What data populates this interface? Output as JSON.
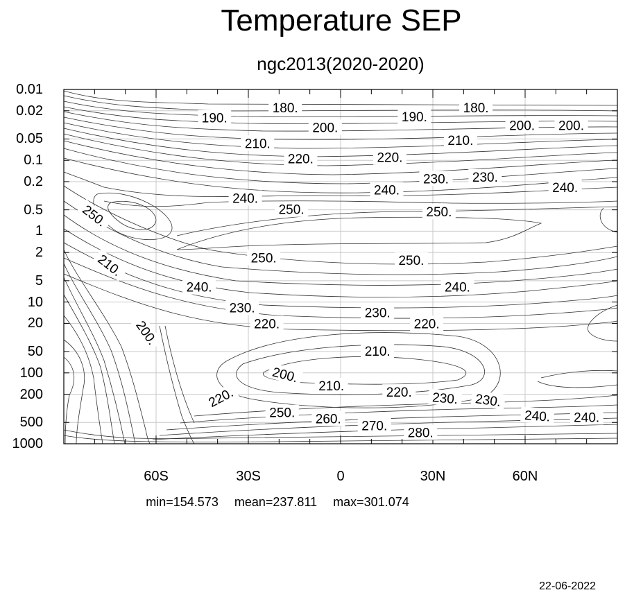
{
  "chart_data": {
    "type": "contour",
    "title": "Temperature SEP",
    "subtitle": "ngc2013(2020-2020)",
    "x_ticks": [
      {
        "value": -60,
        "label": "60S"
      },
      {
        "value": -30,
        "label": "30S"
      },
      {
        "value": 0,
        "label": "0"
      },
      {
        "value": 30,
        "label": "30N"
      },
      {
        "value": 60,
        "label": "60N"
      }
    ],
    "xlim": [
      -90,
      90
    ],
    "y_scale": "log",
    "y_reversed": true,
    "ylim": [
      0.01,
      1000
    ],
    "y_ticks": [
      {
        "value": 0.01,
        "label": "0.01"
      },
      {
        "value": 0.02,
        "label": "0.02"
      },
      {
        "value": 0.05,
        "label": "0.05"
      },
      {
        "value": 0.1,
        "label": "0.1"
      },
      {
        "value": 0.2,
        "label": "0.2"
      },
      {
        "value": 0.5,
        "label": "0.5"
      },
      {
        "value": 1,
        "label": "1"
      },
      {
        "value": 2,
        "label": "2"
      },
      {
        "value": 5,
        "label": "5"
      },
      {
        "value": 10,
        "label": "10"
      },
      {
        "value": 20,
        "label": "20"
      },
      {
        "value": 50,
        "label": "50"
      },
      {
        "value": 100,
        "label": "100"
      },
      {
        "value": 200,
        "label": "200"
      },
      {
        "value": 500,
        "label": "500"
      },
      {
        "value": 1000,
        "label": "1000"
      }
    ],
    "grid": true,
    "contour_labels": [
      {
        "text": "180.",
        "x": -18,
        "p": 0.018
      },
      {
        "text": "180.",
        "x": 44,
        "p": 0.018
      },
      {
        "text": "190.",
        "x": -41,
        "p": 0.025
      },
      {
        "text": "190.",
        "x": 24,
        "p": 0.024
      },
      {
        "text": "200.",
        "x": -5,
        "p": 0.034
      },
      {
        "text": "200.",
        "x": 59,
        "p": 0.032
      },
      {
        "text": "200.",
        "x": 75,
        "p": 0.032
      },
      {
        "text": "210.",
        "x": -27,
        "p": 0.057
      },
      {
        "text": "210.",
        "x": 39,
        "p": 0.052
      },
      {
        "text": "220.",
        "x": -13,
        "p": 0.094
      },
      {
        "text": "220.",
        "x": 16,
        "p": 0.09
      },
      {
        "text": "230.",
        "x": 31,
        "p": 0.18
      },
      {
        "text": "230.",
        "x": 47,
        "p": 0.17
      },
      {
        "text": "240.",
        "x": -31,
        "p": 0.34
      },
      {
        "text": "240.",
        "x": 15,
        "p": 0.26
      },
      {
        "text": "240.",
        "x": 73,
        "p": 0.24
      },
      {
        "text": "250.",
        "x": -16,
        "p": 0.49
      },
      {
        "text": "250.",
        "x": 32,
        "p": 0.53
      },
      {
        "text": "250.",
        "x": -80,
        "p": 0.6,
        "rotate": 38
      },
      {
        "text": "250.",
        "x": -25,
        "p": 2.35
      },
      {
        "text": "250.",
        "x": 23,
        "p": 2.55
      },
      {
        "text": "210.",
        "x": -75,
        "p": 3.0,
        "rotate": 38
      },
      {
        "text": "240.",
        "x": -46,
        "p": 6.1
      },
      {
        "text": "240.",
        "x": 38,
        "p": 6.1
      },
      {
        "text": "230.",
        "x": -32,
        "p": 12
      },
      {
        "text": "230.",
        "x": 12,
        "p": 14
      },
      {
        "text": "200.",
        "x": -63,
        "p": 27,
        "rotate": 55
      },
      {
        "text": "220.",
        "x": -24,
        "p": 20
      },
      {
        "text": "220.",
        "x": 28,
        "p": 20
      },
      {
        "text": "210.",
        "x": 12,
        "p": 49
      },
      {
        "text": "200.",
        "x": -18,
        "p": 105,
        "rotate": 15
      },
      {
        "text": "210.",
        "x": -3,
        "p": 150
      },
      {
        "text": "220.",
        "x": 19,
        "p": 185
      },
      {
        "text": "230.",
        "x": 34,
        "p": 225,
        "rotate": 5
      },
      {
        "text": "230.",
        "x": 48,
        "p": 240,
        "rotate": 8
      },
      {
        "text": "220.",
        "x": -39,
        "p": 220,
        "rotate": -28
      },
      {
        "text": "240.",
        "x": 64,
        "p": 400,
        "rotate": 4
      },
      {
        "text": "240.",
        "x": 80,
        "p": 420
      },
      {
        "text": "250.",
        "x": -19,
        "p": 360
      },
      {
        "text": "260.",
        "x": -4,
        "p": 440
      },
      {
        "text": "270.",
        "x": 11,
        "p": 550
      },
      {
        "text": "280.",
        "x": 26,
        "p": 690
      }
    ]
  },
  "stats": {
    "min": "min=154.573",
    "mean": "mean=237.811",
    "max": "max=301.074"
  },
  "date": "22-06-2022"
}
